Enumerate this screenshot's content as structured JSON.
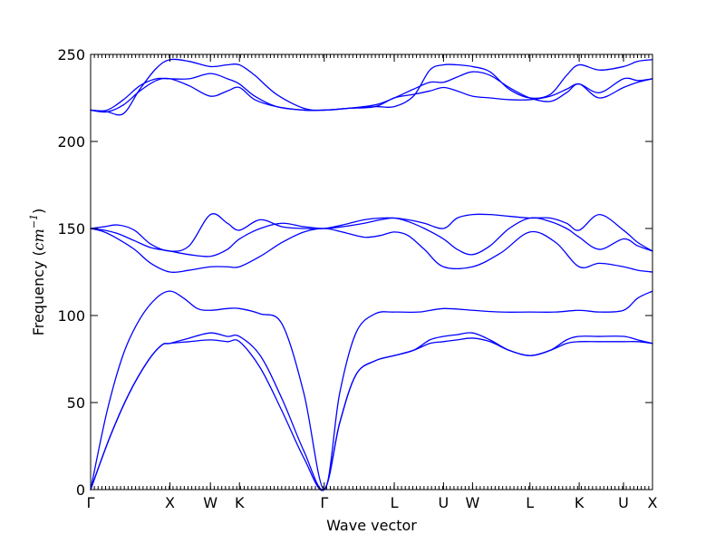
{
  "chart_data": {
    "type": "line",
    "xlabel": "Wave vector",
    "ylabel_text": "Frequency (",
    "ylabel_unit": "cm",
    "ylabel_exponent": "−1",
    "ylabel_close": ")",
    "ylim": [
      0,
      250
    ],
    "yticks": [
      0,
      50,
      100,
      150,
      200,
      250
    ],
    "ytick_labels": [
      "0",
      "50",
      "100",
      "150",
      "200",
      "250"
    ],
    "grid": false,
    "line_color": "#0000ff",
    "path_distance_range": [
      0,
      10.27
    ],
    "high_symmetry_points": [
      {
        "label": "Γ",
        "distance": 0.0
      },
      {
        "label": "X",
        "distance": 1.45
      },
      {
        "label": "W",
        "distance": 2.19
      },
      {
        "label": "K",
        "distance": 2.72
      },
      {
        "label": "Γ",
        "distance": 4.27
      },
      {
        "label": "L",
        "distance": 5.55
      },
      {
        "label": "U",
        "distance": 6.45
      },
      {
        "label": "W",
        "distance": 6.98
      },
      {
        "label": "L",
        "distance": 8.03
      },
      {
        "label": "K",
        "distance": 8.93
      },
      {
        "label": "U",
        "distance": 9.74
      },
      {
        "label": "X",
        "distance": 10.27
      }
    ],
    "series": [
      {
        "x": [
          0,
          0.35,
          0.7,
          1.05,
          1.3,
          1.45,
          1.8,
          2.19,
          2.5,
          2.72,
          3.1,
          3.5,
          3.9,
          4.27,
          4.55,
          4.85,
          5.2,
          5.55,
          5.9,
          6.2,
          6.45,
          6.7,
          6.98,
          7.3,
          7.65,
          8.03,
          8.4,
          8.7,
          8.93,
          9.3,
          9.74,
          10.0,
          10.27
        ],
        "y": [
          0,
          30,
          55,
          74,
          83,
          84,
          85,
          86,
          85,
          85,
          70,
          45,
          18,
          0,
          38,
          66,
          74,
          77,
          80,
          84,
          85,
          86,
          87,
          85,
          80,
          77,
          80,
          84,
          85,
          85,
          85,
          85,
          84
        ]
      },
      {
        "x": [
          0,
          0.35,
          0.7,
          1.05,
          1.3,
          1.45,
          1.8,
          2.19,
          2.5,
          2.72,
          3.1,
          3.5,
          3.9,
          4.27,
          4.55,
          4.85,
          5.2,
          5.55,
          5.9,
          6.2,
          6.45,
          6.7,
          6.98,
          7.3,
          7.65,
          8.03,
          8.4,
          8.7,
          8.93,
          9.3,
          9.74,
          10.0,
          10.27
        ],
        "y": [
          0,
          30,
          55,
          74,
          83,
          84,
          87,
          90,
          88,
          88,
          77,
          52,
          22,
          0,
          38,
          66,
          74,
          77,
          80,
          86,
          88,
          89,
          90,
          86,
          80,
          77,
          80,
          86,
          88,
          88,
          88,
          86,
          84
        ]
      },
      {
        "x": [
          0,
          0.3,
          0.6,
          0.9,
          1.2,
          1.45,
          1.7,
          1.95,
          2.19,
          2.5,
          2.72,
          3.1,
          3.5,
          3.9,
          4.27,
          4.55,
          4.85,
          5.2,
          5.55,
          6.0,
          6.45,
          6.98,
          7.5,
          8.03,
          8.5,
          8.93,
          9.3,
          9.74,
          10.0,
          10.27
        ],
        "y": [
          0,
          45,
          78,
          98,
          110,
          114,
          110,
          104,
          103,
          104,
          104,
          101,
          95,
          55,
          0,
          55,
          90,
          101,
          102,
          102,
          104,
          103,
          102,
          102,
          102,
          103,
          102,
          103,
          110,
          114
        ]
      },
      {
        "x": [
          0,
          0.25,
          0.5,
          0.8,
          1.1,
          1.45,
          1.8,
          2.19,
          2.5,
          2.72,
          3.1,
          3.5,
          3.9,
          4.27,
          4.6,
          5.0,
          5.3,
          5.55,
          5.8,
          6.1,
          6.45,
          6.98,
          7.5,
          8.03,
          8.5,
          8.93,
          9.3,
          9.74,
          10.0,
          10.27
        ],
        "y": [
          150,
          148,
          144,
          138,
          130,
          125,
          126,
          128,
          128,
          128,
          134,
          142,
          148,
          150,
          148,
          145,
          146,
          148,
          146,
          138,
          128,
          128,
          136,
          148,
          142,
          128,
          130,
          128,
          126,
          125
        ]
      },
      {
        "x": [
          0,
          0.25,
          0.5,
          0.8,
          1.1,
          1.45,
          1.8,
          2.19,
          2.5,
          2.72,
          3.1,
          3.5,
          3.9,
          4.27,
          4.6,
          5.0,
          5.3,
          5.55,
          5.8,
          6.1,
          6.45,
          6.7,
          6.98,
          7.3,
          7.65,
          8.03,
          8.4,
          8.7,
          8.93,
          9.3,
          9.74,
          10.0,
          10.27
        ],
        "y": [
          150,
          149,
          147,
          143,
          139,
          137,
          135,
          134,
          138,
          144,
          150,
          153,
          151,
          150,
          151,
          153,
          155,
          156,
          154,
          150,
          144,
          138,
          135,
          140,
          150,
          156,
          154,
          150,
          145,
          138,
          144,
          140,
          137
        ]
      },
      {
        "x": [
          0,
          0.25,
          0.5,
          0.8,
          1.1,
          1.45,
          1.8,
          2.19,
          2.5,
          2.72,
          3.1,
          3.5,
          3.9,
          4.27,
          4.6,
          5.0,
          5.3,
          5.55,
          5.8,
          6.1,
          6.45,
          6.7,
          6.98,
          7.3,
          7.65,
          8.03,
          8.4,
          8.7,
          8.93,
          9.3,
          9.74,
          10.0,
          10.27
        ],
        "y": [
          150,
          151,
          152,
          149,
          141,
          137,
          140,
          158,
          153,
          149,
          155,
          151,
          150,
          150,
          152,
          155,
          156,
          156,
          155,
          153,
          150,
          156,
          158,
          158,
          157,
          156,
          156,
          153,
          149,
          158,
          149,
          142,
          137
        ]
      },
      {
        "x": [
          0,
          0.3,
          0.6,
          0.9,
          1.2,
          1.45,
          1.8,
          2.19,
          2.5,
          2.72,
          3.0,
          3.4,
          3.9,
          4.27,
          4.7,
          5.2,
          5.55,
          5.9,
          6.2,
          6.45,
          6.7,
          6.98,
          7.3,
          7.65,
          8.03,
          8.4,
          8.7,
          8.93,
          9.3,
          9.74,
          10.0,
          10.27
        ],
        "y": [
          218,
          218,
          224,
          232,
          236,
          236,
          236,
          239,
          236,
          233,
          226,
          220,
          218,
          218,
          219,
          220,
          225,
          227,
          229,
          231,
          229,
          226,
          225,
          224,
          224,
          226,
          230,
          233,
          228,
          236,
          235,
          236
        ]
      },
      {
        "x": [
          0,
          0.3,
          0.6,
          0.9,
          1.2,
          1.45,
          1.8,
          2.19,
          2.5,
          2.72,
          3.0,
          3.4,
          3.9,
          4.27,
          4.7,
          5.2,
          5.55,
          5.9,
          6.2,
          6.45,
          6.7,
          6.98,
          7.3,
          7.65,
          8.03,
          8.4,
          8.7,
          8.93,
          9.3,
          9.74,
          10.0,
          10.27
        ],
        "y": [
          218,
          217,
          221,
          229,
          235,
          236,
          232,
          226,
          229,
          231,
          224,
          220,
          218,
          218,
          219,
          221,
          225,
          230,
          234,
          234,
          237,
          240,
          238,
          231,
          225,
          223,
          228,
          233,
          225,
          231,
          234,
          236
        ]
      },
      {
        "x": [
          0,
          0.3,
          0.6,
          0.9,
          1.2,
          1.45,
          1.8,
          2.19,
          2.5,
          2.72,
          3.0,
          3.4,
          3.9,
          4.27,
          4.7,
          5.2,
          5.55,
          5.9,
          6.2,
          6.45,
          6.7,
          6.98,
          7.3,
          7.65,
          8.03,
          8.4,
          8.7,
          8.93,
          9.3,
          9.74,
          10.0,
          10.27
        ],
        "y": [
          218,
          217,
          216,
          230,
          242,
          247,
          246,
          243,
          244,
          244,
          238,
          227,
          219,
          218,
          219,
          220,
          220,
          226,
          241,
          244,
          244,
          243,
          240,
          230,
          225,
          227,
          238,
          244,
          241,
          243,
          246,
          247
        ]
      }
    ]
  }
}
